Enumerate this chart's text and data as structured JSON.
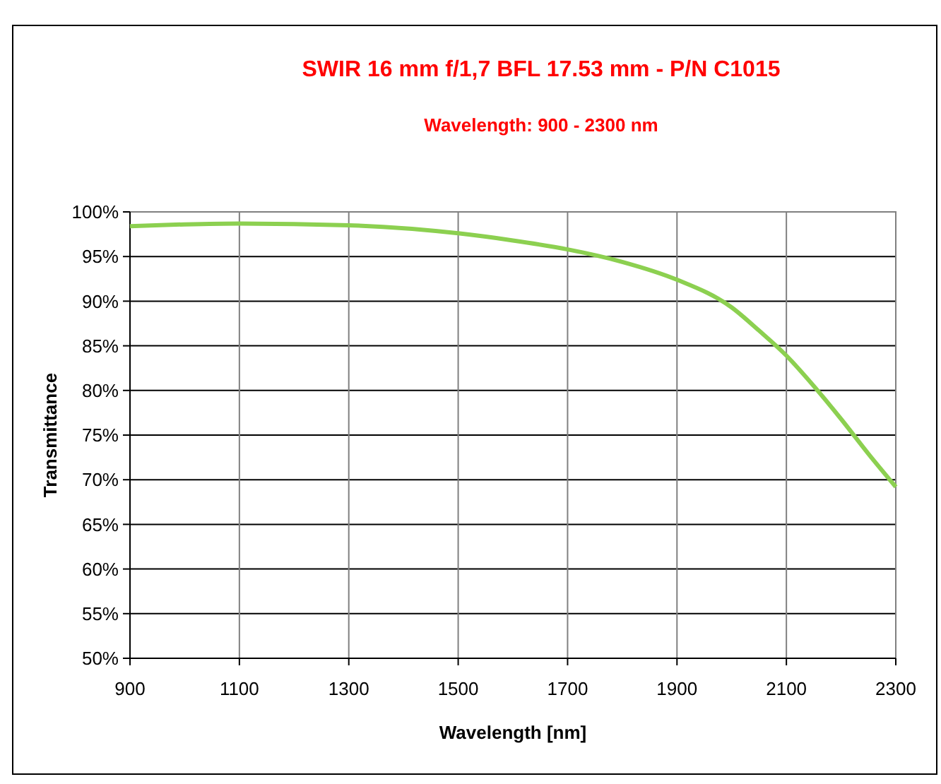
{
  "chart_data": {
    "type": "line",
    "title": "SWIR 16 mm f/1,7 BFL 17.53 mm - P/N C1015",
    "subtitle": "Wavelength: 900 - 2300 nm",
    "xlabel": "Wavelength [nm]",
    "ylabel": "Transmittance",
    "x": [
      900,
      1000,
      1100,
      1300,
      1500,
      1600,
      1700,
      1800,
      1900,
      2000,
      2050,
      2100,
      2150,
      2200,
      2250,
      2300
    ],
    "series": [
      {
        "color": "#8cd050",
        "values": [
          98.4,
          98.6,
          98.7,
          98.5,
          97.6,
          96.8,
          95.8,
          94.4,
          92.4,
          89.3,
          86.7,
          83.9,
          80.5,
          76.8,
          72.9,
          69.2
        ]
      }
    ],
    "xlim": [
      900,
      2300
    ],
    "xticks": [
      900,
      1100,
      1300,
      1500,
      1700,
      1900,
      2100,
      2300
    ],
    "ylim": [
      50,
      100
    ],
    "yticks": [
      {
        "value": 50,
        "label": "50%"
      },
      {
        "value": 55,
        "label": "55%"
      },
      {
        "value": 60,
        "label": "60%"
      },
      {
        "value": 65,
        "label": "65%"
      },
      {
        "value": 70,
        "label": "70%"
      },
      {
        "value": 75,
        "label": "75%"
      },
      {
        "value": 80,
        "label": "80%"
      },
      {
        "value": 85,
        "label": "85%"
      },
      {
        "value": 90,
        "label": "90%"
      },
      {
        "value": 95,
        "label": "95%"
      },
      {
        "value": 100,
        "label": "100%"
      }
    ],
    "grid": true,
    "marker": "none",
    "line_style": "solid"
  }
}
